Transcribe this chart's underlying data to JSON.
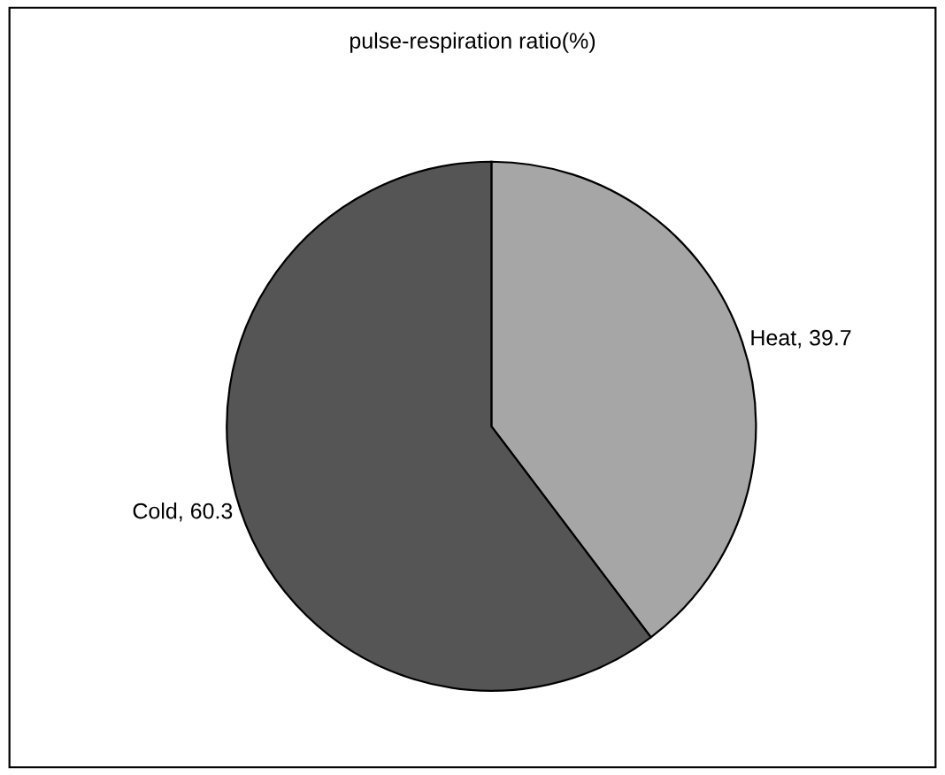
{
  "chart_data": {
    "type": "pie",
    "title": "pulse-respiration ratio(%)",
    "categories": [
      "Heat",
      "Cold"
    ],
    "values": [
      39.7,
      60.3
    ],
    "value_labels": [
      ", 39.7",
      ", 60.3"
    ],
    "colors": [
      "#a6a6a6",
      "#555555"
    ]
  }
}
